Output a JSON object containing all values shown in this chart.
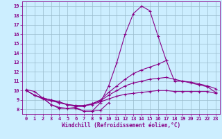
{
  "xlabel": "Windchill (Refroidissement éolien,°C)",
  "bg_color": "#cceeff",
  "line_color": "#880088",
  "grid_color": "#99bbcc",
  "ylim": [
    7.5,
    19.5
  ],
  "xlim": [
    -0.5,
    23.5
  ],
  "yticks": [
    8,
    9,
    10,
    11,
    12,
    13,
    14,
    15,
    16,
    17,
    18,
    19
  ],
  "xticks": [
    0,
    1,
    2,
    3,
    4,
    5,
    6,
    7,
    8,
    9,
    10,
    11,
    12,
    13,
    14,
    15,
    16,
    17,
    18,
    19,
    20,
    21,
    22,
    23
  ],
  "series": [
    {
      "x": [
        0,
        1,
        2,
        3,
        4,
        5,
        6,
        7,
        8,
        9,
        10,
        11,
        12,
        13,
        14,
        15,
        16,
        17,
        18,
        19,
        20,
        21,
        22,
        23
      ],
      "y": [
        10.1,
        9.9,
        9.2,
        8.5,
        8.2,
        8.1,
        8.1,
        7.8,
        7.8,
        8.7,
        10.5,
        13.0,
        16.0,
        18.2,
        19.0,
        18.5,
        15.8,
        13.2,
        null,
        null,
        null,
        null,
        null,
        null
      ]
    },
    {
      "x": [
        0,
        1,
        2,
        3,
        4,
        5,
        6,
        7,
        8,
        9,
        10,
        11,
        12,
        13,
        14,
        15,
        16,
        17,
        18,
        19,
        20,
        21,
        22,
        23
      ],
      "y": [
        10.0,
        9.5,
        9.2,
        9.0,
        8.8,
        8.5,
        8.3,
        8.3,
        8.6,
        9.0,
        9.8,
        10.5,
        11.2,
        11.8,
        12.2,
        12.5,
        12.8,
        13.2,
        11.0,
        11.0,
        10.8,
        10.6,
        10.4,
        9.8
      ]
    },
    {
      "x": [
        0,
        1,
        2,
        3,
        4,
        5,
        6,
        7,
        8,
        9,
        10,
        11,
        12,
        13,
        14,
        15,
        16,
        17,
        18,
        19,
        20,
        21,
        22,
        23
      ],
      "y": [
        10.0,
        9.5,
        9.2,
        9.0,
        8.7,
        8.5,
        8.4,
        8.4,
        8.6,
        8.9,
        9.5,
        10.0,
        10.5,
        10.8,
        11.0,
        11.2,
        11.3,
        11.4,
        11.2,
        11.0,
        10.9,
        10.7,
        10.5,
        10.2
      ]
    },
    {
      "x": [
        0,
        1,
        2,
        3,
        4,
        5,
        6,
        7,
        8,
        9,
        10,
        11,
        12,
        13,
        14,
        15,
        16,
        17,
        18,
        19,
        20,
        21,
        22,
        23
      ],
      "y": [
        10.0,
        9.5,
        9.1,
        8.9,
        8.7,
        8.5,
        8.4,
        8.4,
        8.5,
        8.8,
        9.1,
        9.4,
        9.6,
        9.7,
        9.8,
        9.9,
        10.0,
        10.0,
        9.9,
        9.9,
        9.9,
        9.9,
        9.9,
        9.7
      ]
    },
    {
      "x": [
        2,
        3,
        4,
        5,
        6,
        7,
        8,
        9,
        10
      ],
      "y": [
        9.2,
        8.5,
        8.1,
        8.1,
        8.2,
        7.8,
        7.8,
        7.9,
        8.7
      ]
    }
  ]
}
